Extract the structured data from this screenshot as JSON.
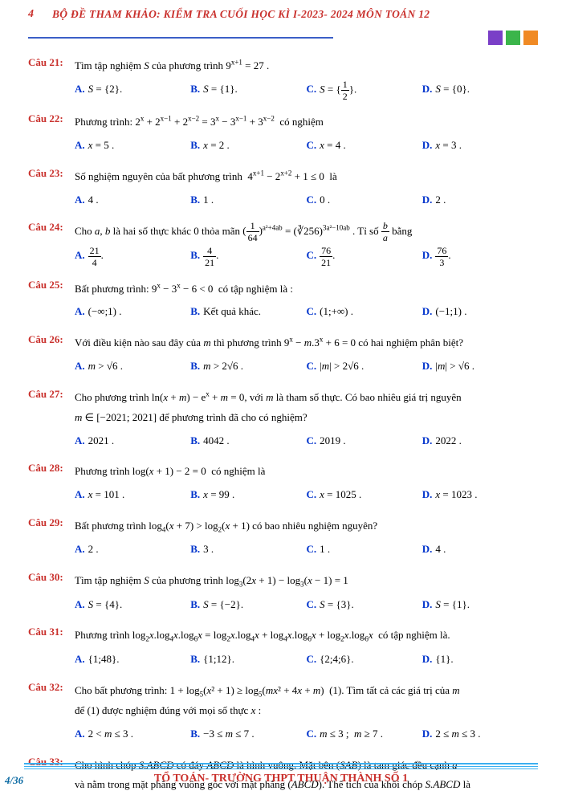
{
  "header": {
    "page_top": "4",
    "title": "BỘ ĐỀ THAM KHẢO: KIỂM TRA CUỐI HỌC KÌ I-2023- 2024 MÔN TOÁN 12",
    "box_colors": [
      "#7a3fc7",
      "#3bb54a",
      "#f08a24"
    ]
  },
  "questions": [
    {
      "num": "Câu 21:",
      "text": "Tìm tập nghiệm S của phương trình 9^{x+1} = 27 .",
      "choices": [
        "S = {2}.",
        "S = {1}.",
        "S = {1/2}.",
        "S = {0}."
      ]
    },
    {
      "num": "Câu 22:",
      "text": "Phương trình: 2^x + 2^{x−1} + 2^{x−2} = 3^x − 3^{x−1} + 3^{x−2}  có nghiệm",
      "choices": [
        "x = 5 .",
        "x = 2 .",
        "x = 4 .",
        "x = 3 ."
      ]
    },
    {
      "num": "Câu 23:",
      "text": "Số nghiệm nguyên của bất phương trình  4^{x+1} − 2^{x+2} + 1 ≤ 0  là",
      "choices": [
        "4 .",
        "1 .",
        "0 .",
        "2 ."
      ]
    },
    {
      "num": "Câu 24:",
      "text": "Cho a, b là hai số thực khác 0 thỏa mãn (1/64)^{a² + 4ab} = (∛256)^{3a² − 10ab} . Tỉ số b/a bằng",
      "choices": [
        "21/4 .",
        "4/21 .",
        "76/21 .",
        "76/3 ."
      ]
    },
    {
      "num": "Câu 25:",
      "text": "Bất phương trình: 9^x − 3^x − 6 < 0  có tập nghiệm là :",
      "choices": [
        "(−∞;1) .",
        "Kết quả khác.",
        "(1;+∞) .",
        "(−1;1) ."
      ]
    },
    {
      "num": "Câu 26:",
      "text": "Với điều kiện nào sau đây của m thì phương trình 9^x − m.3^x + 6 = 0 có hai nghiệm phân biệt?",
      "choices": [
        "m > √6 .",
        "m > 2√6 .",
        "|m| > 2√6 .",
        "|m| > √6 ."
      ]
    },
    {
      "num": "Câu 27:",
      "text": "Cho phương trình ln(x + m) − e^x + m = 0, với m là tham số thực. Có bao nhiêu giá trị nguyên",
      "text2": "m ∈ [−2021; 2021] để phương trình đã cho có nghiệm?",
      "choices": [
        "2021 .",
        "4042 .",
        "2019 .",
        "2022 ."
      ]
    },
    {
      "num": "Câu 28:",
      "text": "Phương trình log(x + 1) − 2 = 0  có nghiệm là",
      "choices": [
        "x = 101 .",
        "x = 99 .",
        "x = 1025 .",
        "x = 1023 ."
      ]
    },
    {
      "num": "Câu 29:",
      "text": "Bất phương trình log₄(x + 7) > log₂(x + 1) có bao nhiêu nghiệm nguyên?",
      "choices": [
        "2 .",
        "3 .",
        "1 .",
        "4 ."
      ]
    },
    {
      "num": "Câu 30:",
      "text": "Tìm tập nghiệm S của phương trình log₃(2x + 1) − log₃(x − 1) = 1",
      "choices": [
        "S = {4}.",
        "S = {−2}.",
        "S = {3}.",
        "S = {1}."
      ]
    },
    {
      "num": "Câu 31:",
      "text": "Phương trình log₂ x.log₄ x.log₆ x = log₂ x.log₄ x + log₄ x.log₆ x + log₂ x.log₆ x  có tập nghiệm là.",
      "choices": [
        "{1;48}.",
        "{1;12}.",
        "{2;4;6}.",
        "{1}."
      ]
    },
    {
      "num": "Câu 32:",
      "text": "Cho bất phương trình: 1 + log₅(x² + 1) ≥ log₅(mx² + 4x + m)  (1). Tìm tất cả các giá trị của m",
      "text2": "để (1) được nghiệm đúng với mọi số thực x :",
      "choices": [
        "2 < m ≤ 3 .",
        "−3 ≤ m ≤ 7 .",
        "m ≤ 3 ;  m ≥ 7 .",
        "2 ≤ m ≤ 3 ."
      ]
    },
    {
      "num": "Câu 33:",
      "text": "Cho hình chóp S.ABCD có đáy ABCD là hình vuông. Mặt bên (SAB) là tam giác đều cạnh a",
      "text2": "và nằm trong mặt phẳng vuông góc với mặt phẳng (ABCD). Thể tích của khối chóp S.ABCD là"
    }
  ],
  "footer": {
    "text": "TỔ TOÁN- TRƯỜNG THPT THUẬN THÀNH SỐ 1",
    "page": "4/36"
  }
}
